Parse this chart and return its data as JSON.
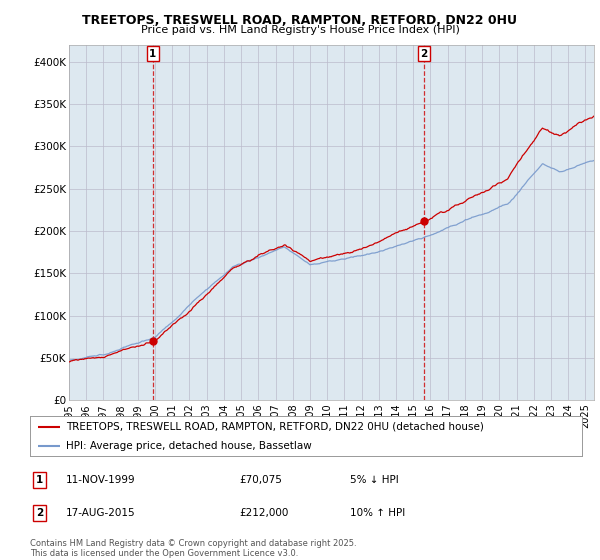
{
  "title_line1": "TREETOPS, TRESWELL ROAD, RAMPTON, RETFORD, DN22 0HU",
  "title_line2": "Price paid vs. HM Land Registry's House Price Index (HPI)",
  "ylabel_ticks": [
    "£0",
    "£50K",
    "£100K",
    "£150K",
    "£200K",
    "£250K",
    "£300K",
    "£350K",
    "£400K"
  ],
  "ytick_values": [
    0,
    50000,
    100000,
    150000,
    200000,
    250000,
    300000,
    350000,
    400000
  ],
  "ylim": [
    0,
    420000
  ],
  "xlim_start": 1995.0,
  "xlim_end": 2025.5,
  "xticks": [
    1995,
    1996,
    1997,
    1998,
    1999,
    2000,
    2001,
    2002,
    2003,
    2004,
    2005,
    2006,
    2007,
    2008,
    2009,
    2010,
    2011,
    2012,
    2013,
    2014,
    2015,
    2016,
    2017,
    2018,
    2019,
    2020,
    2021,
    2022,
    2023,
    2024,
    2025
  ],
  "sale1_x": 1999.865,
  "sale1_y": 70075,
  "sale1_label": "1",
  "sale1_date": "11-NOV-1999",
  "sale1_price": "£70,075",
  "sale1_hpi": "5% ↓ HPI",
  "sale2_x": 2015.63,
  "sale2_y": 212000,
  "sale2_label": "2",
  "sale2_date": "17-AUG-2015",
  "sale2_price": "£212,000",
  "sale2_hpi": "10% ↑ HPI",
  "red_color": "#cc0000",
  "blue_color": "#7799cc",
  "plot_bg_color": "#dde8f0",
  "legend_label_red": "TREETOPS, TRESWELL ROAD, RAMPTON, RETFORD, DN22 0HU (detached house)",
  "legend_label_blue": "HPI: Average price, detached house, Bassetlaw",
  "footnote": "Contains HM Land Registry data © Crown copyright and database right 2025.\nThis data is licensed under the Open Government Licence v3.0.",
  "background_color": "#ffffff",
  "grid_color": "#bbbbcc"
}
